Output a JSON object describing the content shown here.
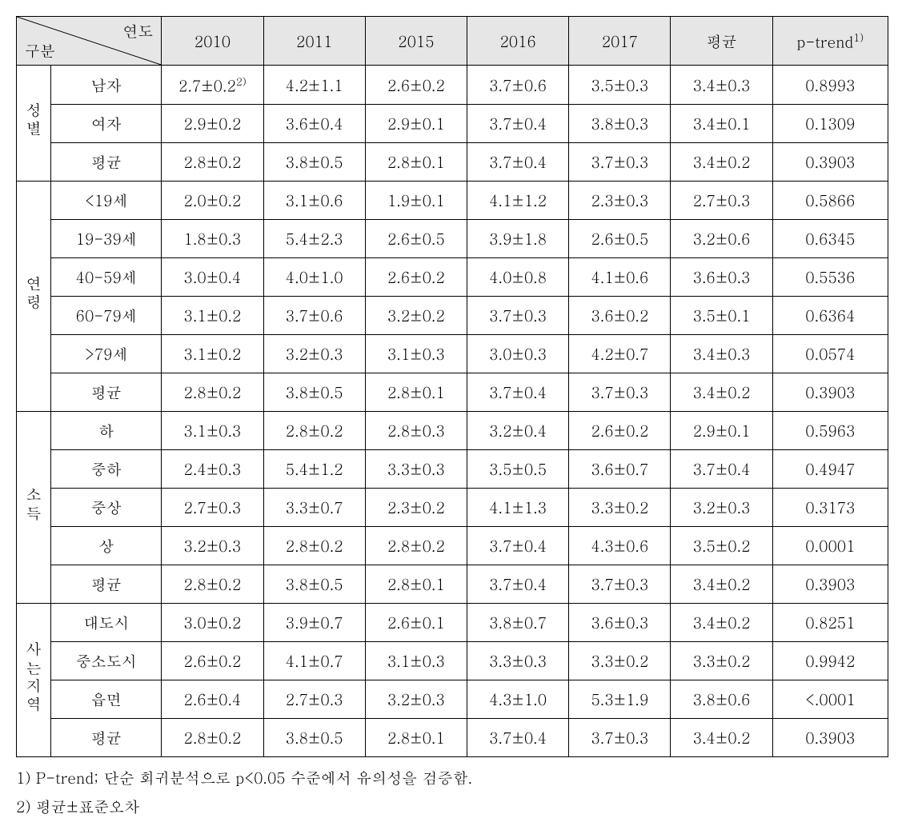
{
  "header": {
    "diag_top": "연도",
    "diag_bot": "구분",
    "years": [
      "2010",
      "2011",
      "2015",
      "2016",
      "2017"
    ],
    "avg": "평균",
    "ptrend": "p-trend",
    "ptrend_sup": "1)"
  },
  "groups": [
    {
      "category": "성별",
      "rows": [
        {
          "label": "남자",
          "cells": [
            "2.7±0.2",
            "4.2±1.1",
            "2.6±0.2",
            "3.7±0.6",
            "3.5±0.3",
            "3.4±0.3",
            "0.8993"
          ],
          "first_sup": "2)"
        },
        {
          "label": "여자",
          "cells": [
            "2.9±0.2",
            "3.6±0.4",
            "2.9±0.1",
            "3.7±0.4",
            "3.8±0.3",
            "3.4±0.1",
            "0.1309"
          ]
        }
      ],
      "avg": {
        "label": "평균",
        "cells": [
          "2.8±0.2",
          "3.8±0.5",
          "2.8±0.1",
          "3.7±0.4",
          "3.7±0.3",
          "3.4±0.2",
          "0.3903"
        ]
      }
    },
    {
      "category": "연령",
      "rows": [
        {
          "label": "<19세",
          "cells": [
            "2.0±0.2",
            "3.1±0.6",
            "1.9±0.1",
            "4.1±1.2",
            "2.3±0.3",
            "2.7±0.3",
            "0.5866"
          ]
        },
        {
          "label": "19-39세",
          "cells": [
            "1.8±0.3",
            "5.4±2.3",
            "2.6±0.5",
            "3.9±1.8",
            "2.6±0.5",
            "3.2±0.6",
            "0.6345"
          ]
        },
        {
          "label": "40-59세",
          "cells": [
            "3.0±0.4",
            "4.0±1.0",
            "2.6±0.2",
            "4.0±0.8",
            "4.1±0.6",
            "3.6±0.3",
            "0.5536"
          ]
        },
        {
          "label": "60-79세",
          "cells": [
            "3.1±0.2",
            "3.7±0.6",
            "3.2±0.2",
            "3.7±0.3",
            "3.6±0.2",
            "3.5±0.1",
            "0.6364"
          ]
        },
        {
          "label": ">79세",
          "cells": [
            "3.1±0.2",
            "3.2±0.3",
            "3.1±0.3",
            "3.0±0.3",
            "4.2±0.7",
            "3.4±0.3",
            "0.0574"
          ]
        }
      ],
      "avg": {
        "label": "평균",
        "cells": [
          "2.8±0.2",
          "3.8±0.5",
          "2.8±0.1",
          "3.7±0.4",
          "3.7±0.3",
          "3.4±0.2",
          "0.3903"
        ]
      }
    },
    {
      "category": "소득",
      "rows": [
        {
          "label": "하",
          "cells": [
            "3.1±0.3",
            "2.8±0.2",
            "2.8±0.3",
            "3.2±0.4",
            "2.6±0.2",
            "2.9±0.1",
            "0.5963"
          ]
        },
        {
          "label": "중하",
          "cells": [
            "2.4±0.3",
            "5.4±1.2",
            "3.3±0.3",
            "3.5±0.5",
            "3.6±0.7",
            "3.7±0.4",
            "0.4947"
          ]
        },
        {
          "label": "중상",
          "cells": [
            "2.7±0.3",
            "3.3±0.7",
            "2.3±0.2",
            "4.1±1.3",
            "3.3±0.2",
            "3.2±0.3",
            "0.3173"
          ]
        },
        {
          "label": "상",
          "cells": [
            "3.2±0.3",
            "2.8±0.2",
            "2.8±0.2",
            "3.7±0.4",
            "4.3±0.6",
            "3.5±0.2",
            "0.0001"
          ]
        }
      ],
      "avg": {
        "label": "평균",
        "cells": [
          "2.8±0.2",
          "3.8±0.5",
          "2.8±0.1",
          "3.7±0.4",
          "3.7±0.3",
          "3.4±0.2",
          "0.3903"
        ]
      }
    },
    {
      "category": "사는지역",
      "rows": [
        {
          "label": "대도시",
          "cells": [
            "3.0±0.2",
            "3.9±0.7",
            "2.6±0.1",
            "3.8±0.7",
            "3.6±0.3",
            "3.4±0.2",
            "0.8251"
          ]
        },
        {
          "label": "중소도시",
          "cells": [
            "2.6±0.2",
            "4.1±0.7",
            "3.1±0.3",
            "3.3±0.3",
            "3.3±0.2",
            "3.3±0.2",
            "0.9942"
          ]
        },
        {
          "label": "읍면",
          "cells": [
            "2.6±0.4",
            "2.7±0.3",
            "3.2±0.3",
            "4.3±1.0",
            "5.3±1.9",
            "3.8±0.6",
            "<.0001"
          ]
        }
      ],
      "avg": {
        "label": "평균",
        "cells": [
          "2.8±0.2",
          "3.8±0.5",
          "2.8±0.1",
          "3.7±0.4",
          "3.7±0.3",
          "3.4±0.2",
          "0.3903"
        ]
      }
    }
  ],
  "footnotes": [
    "1) P-trend; 단순 회귀분석으로 p<0.05 수준에서 유의성을 검증함.",
    "2) 평균±표준오차"
  ],
  "style": {
    "header_bg": "#e6e6e6",
    "border_color": "#000000",
    "font_size_pt": 19,
    "text_color": "#000000",
    "col_widths": {
      "cat": 40,
      "sub": 128,
      "data": 120,
      "ptrend": 136
    }
  }
}
